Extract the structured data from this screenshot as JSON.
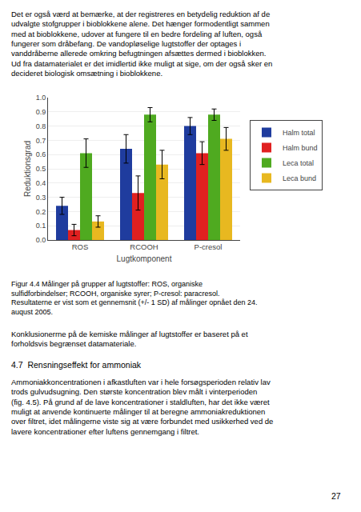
{
  "chart_data": {
    "type": "bar",
    "categories": [
      "ROS",
      "RCOOH",
      "P-cresol"
    ],
    "series": [
      {
        "name": "Halm total",
        "color": "#1f3c9e",
        "values": [
          0.24,
          0.64,
          0.8
        ],
        "errors": [
          0.06,
          0.1,
          0.06
        ]
      },
      {
        "name": "Halm bund",
        "color": "#e02020",
        "values": [
          0.07,
          0.33,
          0.61
        ],
        "errors": [
          0.04,
          0.12,
          0.08
        ]
      },
      {
        "name": "Leca total",
        "color": "#4faa20",
        "values": [
          0.61,
          0.88,
          0.88
        ],
        "errors": [
          0.1,
          0.05,
          0.04
        ]
      },
      {
        "name": "Leca bund",
        "color": "#e8b820",
        "values": [
          0.13,
          0.53,
          0.71
        ],
        "errors": [
          0.04,
          0.1,
          0.08
        ]
      }
    ],
    "xlabel": "Lugtkomponent",
    "ylabel": "Reduktionsgrad",
    "ylim": [
      0,
      1.0
    ],
    "yticks": [
      {
        "value": 0,
        "label": "0.0"
      },
      0.1,
      0.2,
      0.3,
      0.4,
      0.5,
      0.6,
      0.7,
      0.8,
      0.9,
      {
        "value": 1,
        "label": "1.0"
      }
    ],
    "grid": true,
    "legend": "right",
    "annotations": [
      "Det er også værd at bemærke, at der registreres en betydelig reduktion af de\nudvalgte stofgrupper i bioblokkene alene. Det hænger formodentligt sammen\nmed at bioblokkene, udover at fungere til en bedre fordeling af luften, også\nfungerer som dråbefang. De vandopløselige lugtstoffer der optages i\nvanddråberne allerede omkring befugtningen afsættes dermed i bioblokken.\nUd fra datamaterialet er det imidlertid ikke muligt at sige, om der også sker en\ndecideret biologisk omsætning i bioblokkene.",
      "Figur 4.4 Målinger på grupper af lugtstoffer: ROS, organiske\nsulfidforbindelser; RCOOH, organiske syrer; P-cresol: paracresol.\nResultaterne er vist som et gennemsnit (+/- 1 SD) af målinger opnået den 24.\nauqust 2005.",
      "Konklusionerrne på de kemiske målinger af lugtstoffer er baseret på et\nforholdsvis begrænset datamateriale.",
      "4.7  Rensningseffekt for ammoniak",
      "Ammoniakkoncentrationen i afkastluften var i hele forsøgsperioden relativ lav\ntrods gulvudsugning. Den største koncentration blev målt i vinterperioden\n(fig. 4.5). På grund af de lave koncentrationer i staldluften, har det ikke været\nmuligt at anvende kontinuerte målinger til at beregne ammoniakreduktionen\nover filtret, idet målingerne viste sig at være forbundet med usikkerhed ved de\nlavere koncentrationer efter luftens gennemgang i filtret.",
      "27"
    ]
  }
}
